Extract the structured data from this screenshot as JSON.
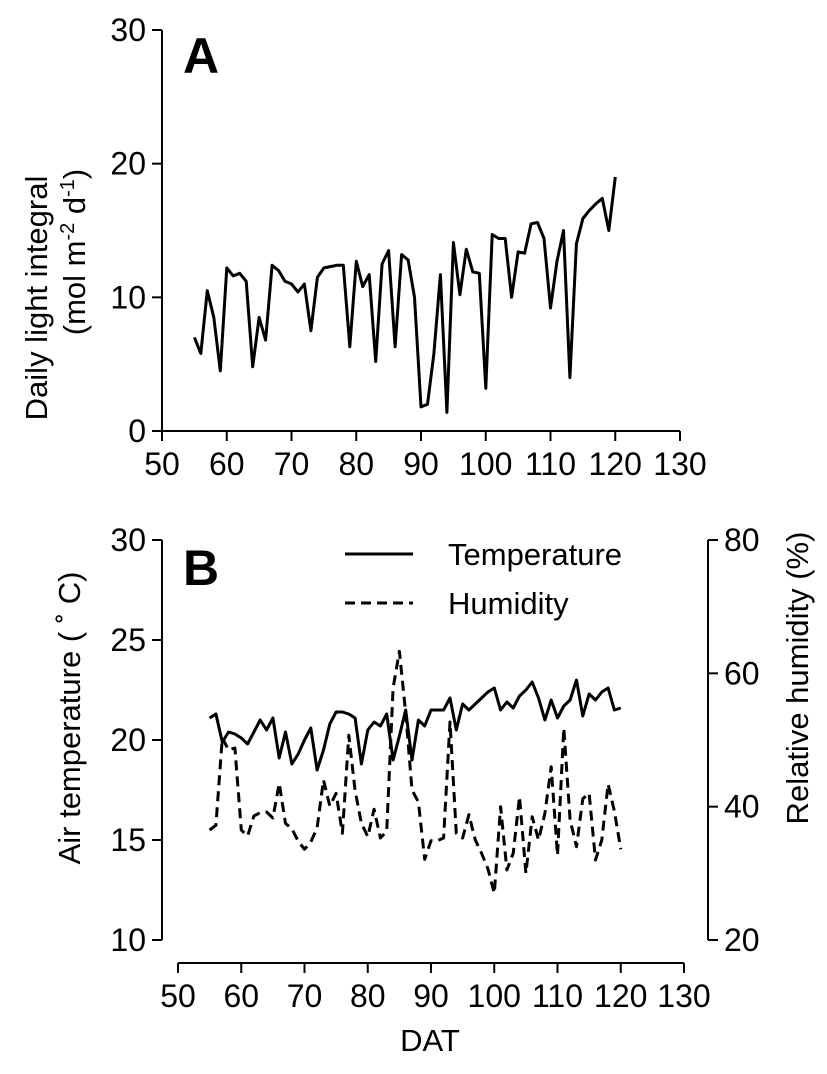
{
  "chart_data": [
    {
      "id": "A",
      "type": "line",
      "panel_label": "A",
      "ylabel": "Daily light integral",
      "ylabel_units": {
        "base": "(mol m",
        "exp1": "-2",
        "mid": " d",
        "exp2": "-1",
        "close": ")"
      },
      "xlim": [
        50,
        130
      ],
      "ylim": [
        0,
        30
      ],
      "x_ticks": [
        50,
        60,
        70,
        80,
        90,
        100,
        110,
        120,
        130
      ],
      "y_ticks": [
        0,
        10,
        20,
        30
      ],
      "series": [
        {
          "style": "solid",
          "x": [
            55,
            56,
            57,
            58,
            59,
            60,
            61,
            62,
            63,
            64,
            65,
            66,
            67,
            68,
            69,
            70,
            71,
            72,
            73,
            74,
            75,
            76,
            77,
            78,
            79,
            80,
            81,
            82,
            83,
            84,
            85,
            86,
            87,
            88,
            89,
            90,
            91,
            92,
            93,
            94,
            95,
            96,
            97,
            98,
            99,
            100,
            101,
            102,
            103,
            104,
            105,
            106,
            107,
            108,
            109,
            110,
            111,
            112,
            113,
            114,
            115,
            116,
            117,
            118,
            119,
            120
          ],
          "y": [
            7.0,
            5.8,
            10.5,
            8.5,
            4.5,
            12.2,
            11.6,
            11.8,
            11.2,
            4.8,
            8.5,
            6.8,
            12.4,
            12.0,
            11.2,
            11.0,
            10.4,
            11.0,
            7.5,
            11.5,
            12.2,
            12.3,
            12.4,
            12.4,
            6.3,
            12.7,
            10.8,
            11.7,
            5.2,
            12.5,
            13.5,
            6.3,
            13.2,
            12.8,
            10.0,
            1.8,
            2.0,
            5.8,
            11.7,
            1.4,
            14.1,
            10.2,
            13.6,
            11.9,
            11.8,
            3.2,
            14.7,
            14.4,
            14.4,
            10.0,
            13.4,
            13.3,
            15.5,
            15.6,
            14.4,
            9.2,
            12.7,
            15.0,
            4.0,
            14.0,
            15.9,
            16.5,
            17.0,
            17.4,
            15.0,
            19.0
          ]
        }
      ]
    },
    {
      "id": "B",
      "type": "line",
      "panel_label": "B",
      "xlabel": "DAT",
      "ylabel": "Air temperature ( ˚ C)",
      "y2label": "Relative humidity (%)",
      "xlim": [
        50,
        130
      ],
      "ylim": [
        10,
        30
      ],
      "y2lim": [
        20,
        80
      ],
      "x_ticks": [
        50,
        60,
        70,
        80,
        90,
        100,
        110,
        120,
        130
      ],
      "y_ticks": [
        10,
        15,
        20,
        25,
        30
      ],
      "y2_ticks": [
        20,
        40,
        60,
        80
      ],
      "legend_position": "top-right",
      "series": [
        {
          "name": "Temperature",
          "style": "solid",
          "axis": "left",
          "x": [
            55,
            56,
            57,
            58,
            59,
            60,
            61,
            62,
            63,
            64,
            65,
            66,
            67,
            68,
            69,
            70,
            71,
            72,
            73,
            74,
            75,
            76,
            77,
            78,
            79,
            80,
            81,
            82,
            83,
            84,
            85,
            86,
            87,
            88,
            89,
            90,
            91,
            92,
            93,
            94,
            95,
            96,
            97,
            98,
            99,
            100,
            101,
            102,
            103,
            104,
            105,
            106,
            107,
            108,
            109,
            110,
            111,
            112,
            113,
            114,
            115,
            116,
            117,
            118,
            119,
            120
          ],
          "y": [
            21.1,
            21.3,
            19.9,
            20.4,
            20.3,
            20.1,
            19.8,
            20.4,
            21.0,
            20.5,
            21.1,
            19.1,
            20.4,
            18.8,
            19.3,
            20.0,
            20.6,
            18.5,
            19.5,
            20.8,
            21.4,
            21.4,
            21.3,
            21.1,
            18.8,
            20.5,
            20.9,
            20.7,
            21.3,
            19.0,
            20.2,
            21.5,
            19.0,
            21.0,
            20.7,
            21.5,
            21.5,
            21.5,
            22.1,
            20.5,
            21.8,
            21.5,
            21.8,
            22.1,
            22.4,
            22.6,
            21.5,
            21.9,
            21.6,
            22.2,
            22.5,
            22.9,
            22.1,
            21.0,
            22.0,
            21.1,
            21.7,
            22.0,
            23.0,
            21.2,
            22.3,
            22.0,
            22.4,
            22.6,
            21.5,
            21.6
          ]
        },
        {
          "name": "Humidity",
          "style": "dashed",
          "axis": "right",
          "x": [
            55,
            56,
            57,
            58,
            59,
            60,
            61,
            62,
            63,
            64,
            65,
            66,
            67,
            68,
            69,
            70,
            71,
            72,
            73,
            74,
            75,
            76,
            77,
            78,
            79,
            80,
            81,
            82,
            83,
            84,
            85,
            86,
            87,
            88,
            89,
            90,
            91,
            92,
            93,
            94,
            95,
            96,
            97,
            98,
            99,
            100,
            101,
            102,
            103,
            104,
            105,
            106,
            107,
            108,
            109,
            110,
            111,
            112,
            113,
            114,
            115,
            116,
            117,
            118,
            119,
            120
          ],
          "y": [
            36.5,
            37.2,
            50.3,
            48.5,
            48.8,
            36.5,
            35.6,
            38.6,
            39.1,
            39.2,
            38.3,
            43.5,
            37.5,
            36.7,
            34.8,
            33.6,
            34.7,
            36.8,
            44.0,
            40.1,
            42.0,
            36.0,
            50.7,
            42.4,
            37.5,
            35.5,
            39.6,
            35.3,
            36.3,
            57.8,
            63.3,
            54.0,
            42.5,
            40.7,
            32.1,
            34.9,
            34.9,
            35.3,
            52.7,
            36.0,
            35.3,
            38.8,
            35.0,
            33.0,
            30.7,
            27.0,
            40.0,
            30.5,
            33.0,
            41.5,
            30.0,
            38.5,
            35.0,
            39.0,
            46.0,
            32.7,
            51.8,
            38.0,
            34.0,
            41.2,
            42.0,
            32.0,
            35.0,
            43.4,
            39.3,
            33.6
          ]
        }
      ]
    }
  ]
}
